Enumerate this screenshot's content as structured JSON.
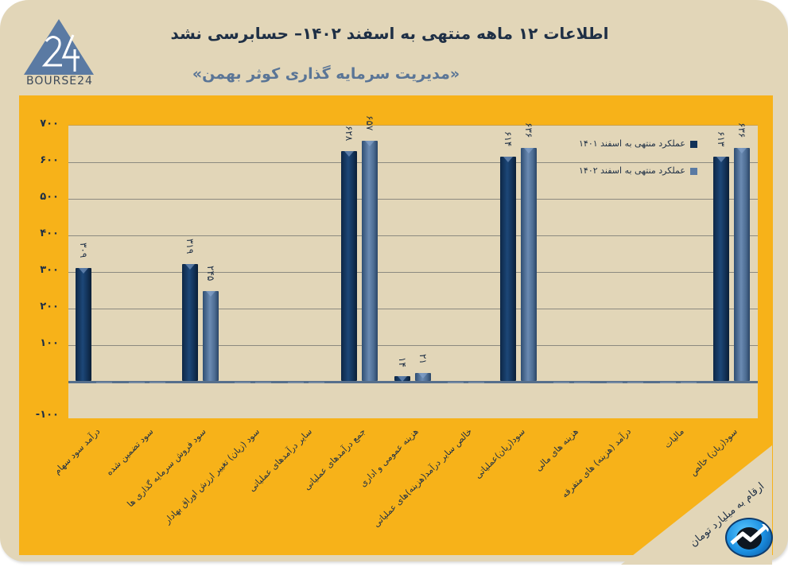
{
  "header": {
    "logo_text": "BOURSE24",
    "title": "اطلاعات ۱۲ ماهه منتهی به اسفند ۱۴۰۲– حسابرسی نشد",
    "subtitle": "«مدیریت سرمایه گذاری کوثر بهمن»"
  },
  "footer": {
    "unit_note": "ارقام به میلیارد تومان",
    "badge_icon": "trend-up-icon"
  },
  "colors": {
    "background": "#e2d6b8",
    "frame": "#f7b219",
    "series_1401": "#123258",
    "series_1402": "#5a7aa3",
    "text": "#1e2f45"
  },
  "legend": {
    "items": [
      {
        "label": "عملکرد منتهی به اسفند ۱۴۰۱",
        "color": "#123258"
      },
      {
        "label": "عملکرد منتهی به اسفند ۱۴۰۲",
        "color": "#5a7aa3"
      }
    ]
  },
  "yaxis": {
    "ticks": [
      "۷۰۰",
      "۶۰۰",
      "۵۰۰",
      "۴۰۰",
      "۳۰۰",
      "۲۰۰",
      "۱۰۰",
      "-۱۰۰"
    ]
  },
  "chart_data": {
    "type": "bar",
    "title": "اطلاعات ۱۲ ماهه منتهی به اسفند ۱۴۰۲– حسابرسی نشد",
    "subtitle": "«مدیریت سرمایه گذاری کوثر بهمن»",
    "xlabel": "",
    "ylabel": "ارقام به میلیارد تومان",
    "ylim": [
      -100,
      700
    ],
    "yticks": [
      -100,
      0,
      100,
      200,
      300,
      400,
      500,
      600,
      700
    ],
    "grid": true,
    "legend_position": "top-right inside",
    "categories": [
      "درآمد سود سهام",
      "سود تضمین شده",
      "سود فروش سرمایه گذاری ها",
      "سود (زیان) تغییر ارزش اوراق بهادار",
      "سایر درآمدهای عملیاتی",
      "جمع درآمدهای عملیاتی",
      "هزینه عمومی و اداری",
      "خالص سایر درآمد(هزینه)های عملیاتی",
      "سود(زیان)عملیاتی",
      "هزینه های مالی",
      "درآمد (هزینه) های متفرقه",
      "مالیات",
      "سود(زیان) خالص"
    ],
    "series": [
      {
        "name": "عملکرد منتهی به اسفند ۱۴۰۱",
        "values": [
          309,
          0,
          319,
          0,
          0,
          628,
          14,
          0,
          614,
          0,
          0,
          0,
          613
        ]
      },
      {
        "name": "عملکرد منتهی به اسفند ۱۴۰۲",
        "values": [
          0,
          0,
          245,
          0,
          0,
          657,
          21,
          0,
          636,
          0,
          0,
          0,
          636
        ]
      }
    ],
    "data_labels": [
      {
        "category": 0,
        "series": 0,
        "text": "۳۰۹"
      },
      {
        "category": 2,
        "series": 0,
        "text": "۳۱۹"
      },
      {
        "category": 2,
        "series": 1,
        "text": "۲۴۵"
      },
      {
        "category": 5,
        "series": 0,
        "text": "۶۲۸"
      },
      {
        "category": 5,
        "series": 1,
        "text": "۶۵۷"
      },
      {
        "category": 6,
        "series": 0,
        "text": "۱۴"
      },
      {
        "category": 6,
        "series": 1,
        "text": "۲۱"
      },
      {
        "category": 8,
        "series": 0,
        "text": "۶۱۴"
      },
      {
        "category": 8,
        "series": 1,
        "text": "۶۳۶"
      },
      {
        "category": 12,
        "series": 0,
        "text": "۶۱۳"
      },
      {
        "category": 12,
        "series": 1,
        "text": "۶۳۶"
      }
    ]
  }
}
